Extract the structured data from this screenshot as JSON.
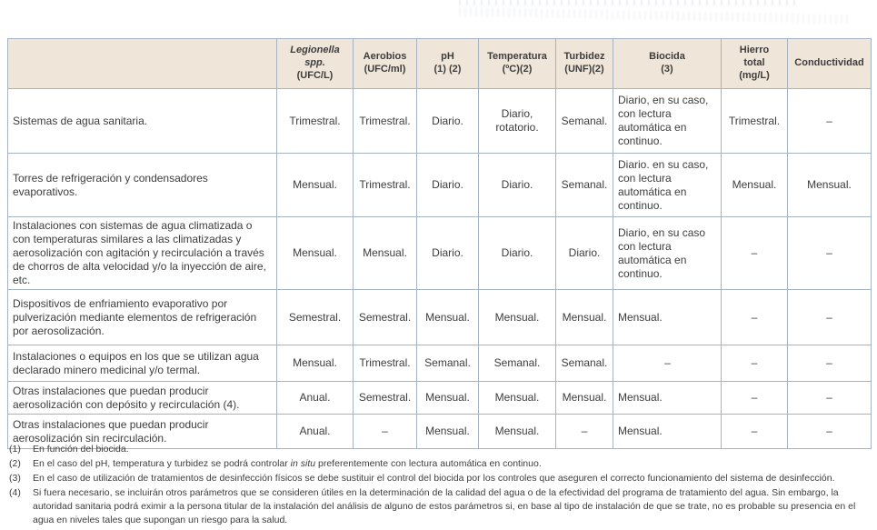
{
  "colors": {
    "header_bg": "#efe5d8",
    "border": "#a5b3c3",
    "text": "#3d3d3d",
    "page_bg": "#ffffff"
  },
  "table": {
    "headers": [
      {
        "name": "",
        "unit": ""
      },
      {
        "name": "Legionella spp.",
        "unit": "(UFC/L)"
      },
      {
        "name": "Aerobios",
        "unit": "(UFC/ml)"
      },
      {
        "name": "pH",
        "unit": "(1) (2)"
      },
      {
        "name": "Temperatura",
        "unit": "(ºC)(2)"
      },
      {
        "name": "Turbidez",
        "unit": "(UNF)(2)"
      },
      {
        "name": "Biocida",
        "unit": "(3)"
      },
      {
        "name": "Hierro\ntotal",
        "unit": "(mg/L)"
      },
      {
        "name": "Conductividad",
        "unit": ""
      }
    ],
    "rows": [
      {
        "label": "Sistemas de agua sanitaria.",
        "cells": [
          "Trimestral.",
          "Trimestral.",
          "Diario.",
          "Diario, rotatorio.",
          "Semanal.",
          "Diario, en su caso, con lectura automática en continuo.",
          "Trimestral.",
          "–"
        ]
      },
      {
        "label": "Torres de refrigeración y condensadores evaporativos.",
        "cells": [
          "Mensual.",
          "Trimestral.",
          "Diario.",
          "Diario.",
          "Semanal.",
          "Diario. en su caso, con lectura automática en continuo.",
          "Mensual.",
          "Mensual."
        ]
      },
      {
        "label": "Instalaciones con sistemas de agua climatizada o con temperaturas similares a las climatizadas y aerosolización con agitación y recirculación a través de chorros de alta velocidad y/o la inyección de aire, etc.",
        "cells": [
          "Mensual.",
          "Mensual.",
          "Diario.",
          "Diario.",
          "Diario.",
          "Diario, en su caso con lectura automática en continuo.",
          "–",
          "–"
        ]
      },
      {
        "label": "Dispositivos de enfriamiento evaporativo por pulverización mediante elementos de refrigeración por aerosolización.",
        "cells": [
          "Semestral.",
          "Semestral.",
          "Mensual.",
          "Mensual.",
          "Mensual.",
          "Mensual.",
          "–",
          "–"
        ]
      },
      {
        "label": "Instalaciones o equipos en los que se utilizan agua declarado minero medicinal y/o termal.",
        "cells": [
          "Mensual.",
          "Trimestral.",
          "Semanal.",
          "Semanal.",
          "Semanal.",
          "–",
          "–",
          "–"
        ]
      },
      {
        "label": "Otras instalaciones que puedan producir aerosolización con depósito y recirculación (4).",
        "cells": [
          "Anual.",
          "Semestral.",
          "Mensual.",
          "Mensual.",
          "Mensual.",
          "Mensual.",
          "–",
          "–"
        ]
      },
      {
        "label": "Otras instalaciones que puedan producir aerosolización sin recirculación.",
        "cells": [
          "Anual.",
          "–",
          "Mensual.",
          "Mensual.",
          "–",
          "Mensual.",
          "–",
          "–"
        ]
      }
    ]
  },
  "footnotes": [
    {
      "num": "(1)",
      "text1": "En función del biocida.",
      "em": "",
      "text2": ""
    },
    {
      "num": "(2)",
      "text1": "En el caso del pH, temperatura y turbidez se podrá controlar ",
      "em": "in situ",
      "text2": " preferentemente con lectura automática en continuo."
    },
    {
      "num": "(3)",
      "text1": "En el caso de utilización de tratamientos de desinfección físicos se debe sustituir el control del biocida por los controles que aseguren el correcto funcionamiento del sistema de desinfección.",
      "em": "",
      "text2": ""
    },
    {
      "num": "(4)",
      "text1": "Si fuera necesario, se incluirán otros parámetros que se consideren útiles en la determinación de la calidad del agua o de la efectividad del programa de tratamiento del agua. Sin embargo, la autoridad sanitaria podrá eximir a la persona titular de la instalación del análisis de alguno de estos parámetros si, en base al tipo de instalación de que se trate, no es probable su presencia en el agua en niveles tales que supongan un riesgo para la salud.",
      "em": "",
      "text2": ""
    }
  ]
}
